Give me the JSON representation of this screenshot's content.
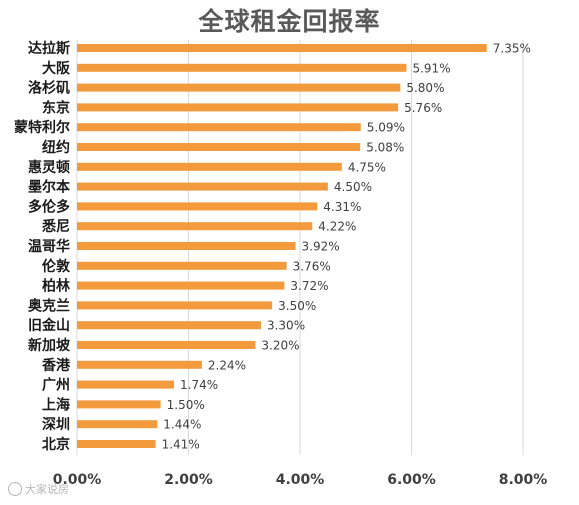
{
  "chart_data": {
    "type": "bar",
    "orientation": "horizontal",
    "title": "全球租金回报率",
    "categories": [
      "达拉斯",
      "大阪",
      "洛杉矶",
      "东京",
      "蒙特利尔",
      "纽约",
      "惠灵顿",
      "墨尔本",
      "多伦多",
      "悉尼",
      "温哥华",
      "伦敦",
      "柏林",
      "奥克兰",
      "旧金山",
      "新加坡",
      "香港",
      "广州",
      "上海",
      "深圳",
      "北京"
    ],
    "values": [
      7.35,
      5.91,
      5.8,
      5.76,
      5.09,
      5.08,
      4.75,
      4.5,
      4.31,
      4.22,
      3.92,
      3.76,
      3.72,
      3.5,
      3.3,
      3.2,
      2.24,
      1.74,
      1.5,
      1.44,
      1.41
    ],
    "value_labels": [
      "7.35%",
      "5.91%",
      "5.80%",
      "5.76%",
      "5.09%",
      "5.08%",
      "4.75%",
      "4.50%",
      "4.31%",
      "4.22%",
      "3.92%",
      "3.76%",
      "3.72%",
      "3.50%",
      "3.30%",
      "3.20%",
      "2.24%",
      "1.74%",
      "1.50%",
      "1.44%",
      "1.41%"
    ],
    "xlim": [
      0,
      8
    ],
    "x_ticks": [
      0,
      2,
      4,
      6,
      8
    ],
    "x_tick_labels": [
      "0.00%",
      "2.00%",
      "4.00%",
      "6.00%",
      "8.00%"
    ],
    "grid": true,
    "legend": "none",
    "bar_color": "#F29A3C",
    "grid_color": "#D9D9D9"
  },
  "watermark": {
    "text": "大家说房",
    "icon": "weibo-logo-icon"
  }
}
